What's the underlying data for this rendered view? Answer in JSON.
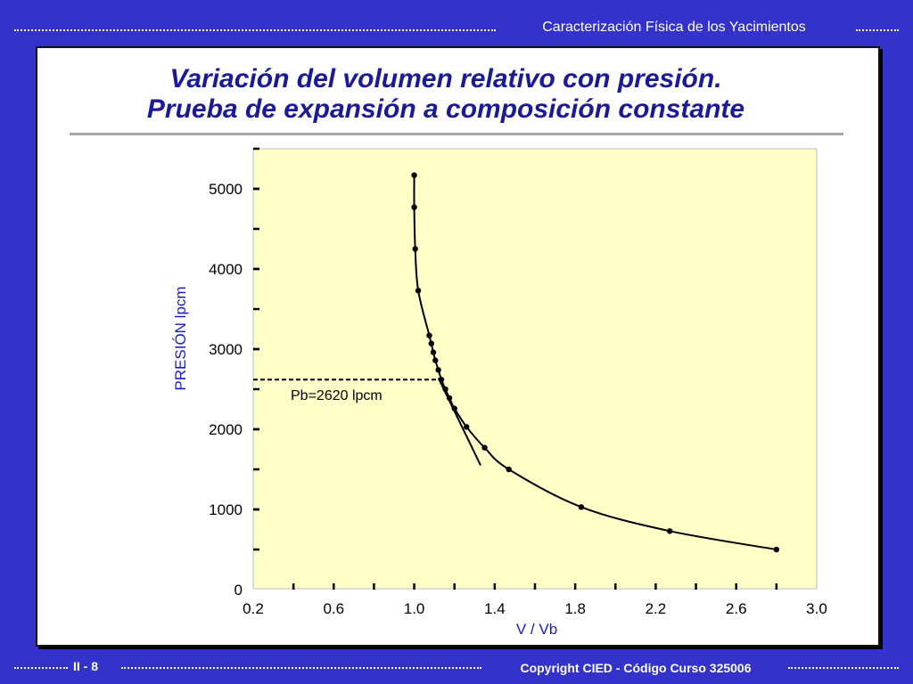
{
  "header": {
    "course_title": "Caracterización Física de los Yacimientos"
  },
  "slide": {
    "title_line1": "Variación del volumen relativo con presión.",
    "title_line2": "Prueba de expansión a composición constante"
  },
  "footer": {
    "page_number": "II - 8",
    "copyright": "Copyright CIED - Código Curso 325006"
  },
  "colors": {
    "background": "#3333cc",
    "title": "#1a1a99",
    "plot_area": "#ffffc8",
    "axis_label": "#1a1acc"
  },
  "chart_data": {
    "type": "scatter",
    "xlabel": "V / Vb",
    "ylabel": "PRESIÓN  lpcm",
    "xlim": [
      0.2,
      3.0
    ],
    "ylim": [
      0,
      5500
    ],
    "x_ticks": [
      0.2,
      0.6,
      1.0,
      1.4,
      1.8,
      2.2,
      2.6,
      3.0
    ],
    "x_tick_labels": [
      "0.2",
      "0.6",
      "1.0",
      "1.4",
      "1.8",
      "2.2",
      "2.6",
      "3.0"
    ],
    "y_ticks": [
      0,
      1000,
      2000,
      3000,
      4000,
      5000
    ],
    "y_tick_labels": [
      "0",
      "1000",
      "2000",
      "3000",
      "4000",
      "5000"
    ],
    "grid": false,
    "series": [
      {
        "values": [
          {
            "x": 1.0,
            "y": 5170
          },
          {
            "x": 1.0,
            "y": 4770
          },
          {
            "x": 1.005,
            "y": 4250
          },
          {
            "x": 1.02,
            "y": 3730
          },
          {
            "x": 1.075,
            "y": 3170
          },
          {
            "x": 1.085,
            "y": 3070
          },
          {
            "x": 1.095,
            "y": 2960
          },
          {
            "x": 1.105,
            "y": 2860
          },
          {
            "x": 1.12,
            "y": 2740
          },
          {
            "x": 1.135,
            "y": 2620
          },
          {
            "x": 1.155,
            "y": 2500
          },
          {
            "x": 1.175,
            "y": 2390
          },
          {
            "x": 1.2,
            "y": 2260
          },
          {
            "x": 1.26,
            "y": 2030
          },
          {
            "x": 1.35,
            "y": 1770
          },
          {
            "x": 1.47,
            "y": 1500
          },
          {
            "x": 1.83,
            "y": 1030
          },
          {
            "x": 2.27,
            "y": 730
          },
          {
            "x": 2.8,
            "y": 500
          }
        ]
      }
    ],
    "tangent_line": [
      {
        "x": 1.12,
        "y": 2640
      },
      {
        "x": 1.33,
        "y": 1550
      }
    ],
    "bubble_point": {
      "y": 2620,
      "label": "Pb=2620  lpcm"
    }
  }
}
